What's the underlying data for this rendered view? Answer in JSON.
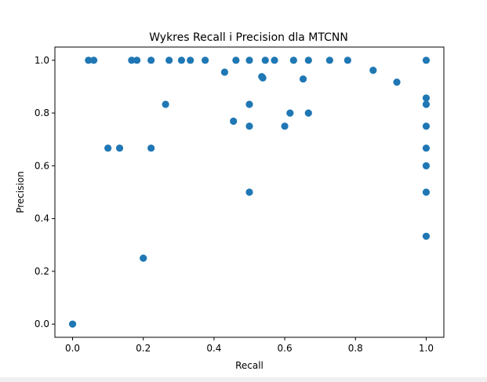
{
  "chart_data": {
    "type": "scatter",
    "title": "Wykres Recall i Precision dla MTCNN",
    "xlabel": "Recall",
    "ylabel": "Precision",
    "xlim": [
      -0.05,
      1.05
    ],
    "ylim": [
      -0.05,
      1.05
    ],
    "xticks": [
      0.0,
      0.2,
      0.4,
      0.6,
      0.8,
      1.0
    ],
    "xtick_labels": [
      "0.0",
      "0.2",
      "0.4",
      "0.6",
      "0.8",
      "1.0"
    ],
    "yticks": [
      0.0,
      0.2,
      0.4,
      0.6,
      0.8,
      1.0
    ],
    "ytick_labels": [
      "0.0",
      "0.2",
      "0.4",
      "0.6",
      "0.8",
      "1.0"
    ],
    "grid": false,
    "marker_color": "#1f77b4",
    "points": [
      [
        0.0,
        0.0
      ],
      [
        0.045,
        1.0
      ],
      [
        0.06,
        1.0
      ],
      [
        0.1,
        0.667
      ],
      [
        0.133,
        0.667
      ],
      [
        0.167,
        1.0
      ],
      [
        0.182,
        1.0
      ],
      [
        0.2,
        0.25
      ],
      [
        0.222,
        1.0
      ],
      [
        0.222,
        0.667
      ],
      [
        0.263,
        0.833
      ],
      [
        0.273,
        1.0
      ],
      [
        0.308,
        1.0
      ],
      [
        0.333,
        1.0
      ],
      [
        0.375,
        1.0
      ],
      [
        0.43,
        0.955
      ],
      [
        0.455,
        0.769
      ],
      [
        0.462,
        1.0
      ],
      [
        0.5,
        1.0
      ],
      [
        0.5,
        0.833
      ],
      [
        0.5,
        0.75
      ],
      [
        0.5,
        0.5
      ],
      [
        0.535,
        0.938
      ],
      [
        0.538,
        0.933
      ],
      [
        0.545,
        1.0
      ],
      [
        0.571,
        1.0
      ],
      [
        0.6,
        0.75
      ],
      [
        0.615,
        0.8
      ],
      [
        0.625,
        1.0
      ],
      [
        0.652,
        0.929
      ],
      [
        0.667,
        1.0
      ],
      [
        0.667,
        0.8
      ],
      [
        0.727,
        1.0
      ],
      [
        0.778,
        1.0
      ],
      [
        0.85,
        0.962
      ],
      [
        0.917,
        0.917
      ],
      [
        1.0,
        1.0
      ],
      [
        1.0,
        0.857
      ],
      [
        1.0,
        0.833
      ],
      [
        1.0,
        0.75
      ],
      [
        1.0,
        0.667
      ],
      [
        1.0,
        0.6
      ],
      [
        1.0,
        0.5
      ],
      [
        1.0,
        0.333
      ]
    ]
  }
}
